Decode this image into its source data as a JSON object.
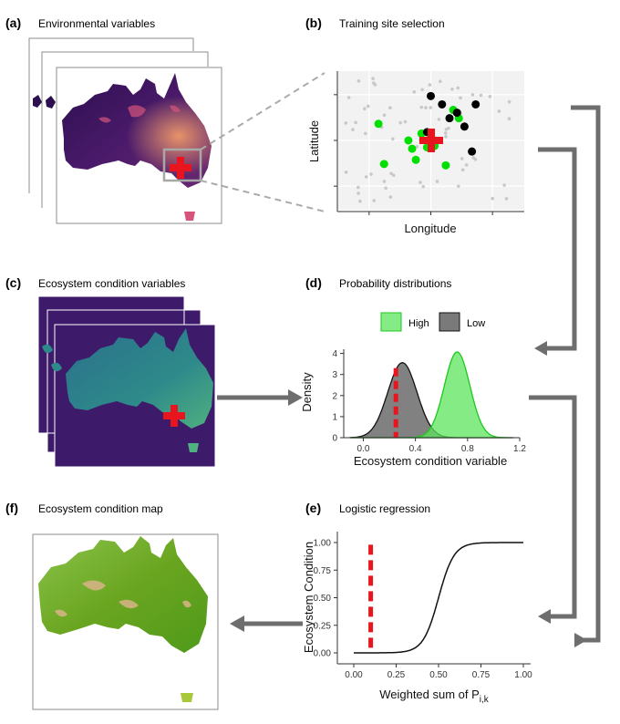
{
  "panels": {
    "a": {
      "letter": "(a)",
      "title": "Environmental variables"
    },
    "b": {
      "letter": "(b)",
      "title": "Training site selection",
      "xlabel": "Longitude",
      "ylabel": "Latitude"
    },
    "c": {
      "letter": "(c)",
      "title": "Ecosystem condition variables"
    },
    "d": {
      "letter": "(d)",
      "title": "Probability distributions",
      "xlabel": "Ecosystem condition variable",
      "ylabel": "Density",
      "legend": [
        {
          "label": "High",
          "color": "#5ce65c"
        },
        {
          "label": "Low",
          "color": "#7a7a7a"
        }
      ]
    },
    "e": {
      "letter": "(e)",
      "title": "Logistic regression",
      "xlabel": "Weighted sum of P",
      "xlabel_sub": "i,k",
      "ylabel": "Ecosystem Condition"
    },
    "f": {
      "letter": "(f)",
      "title": "Ecosystem condition map"
    }
  },
  "colors": {
    "high": "#5ce65c",
    "low": "#7a7a7a",
    "marker": "#e8141e",
    "arrow": "#6e6e6e"
  },
  "chart_data": [
    {
      "type": "scatter",
      "panel": "b",
      "xlabel": "Longitude",
      "ylabel": "Latitude",
      "grid": true,
      "series": [
        {
          "name": "",
          "color": "#00e000",
          "points": [
            [
              0.22,
              0.62
            ],
            [
              0.25,
              0.33
            ],
            [
              0.38,
              0.5
            ],
            [
              0.4,
              0.44
            ],
            [
              0.42,
              0.36
            ],
            [
              0.45,
              0.55
            ],
            [
              0.48,
              0.45
            ],
            [
              0.52,
              0.5
            ],
            [
              0.52,
              0.46
            ],
            [
              0.58,
              0.32
            ],
            [
              0.62,
              0.72
            ],
            [
              0.65,
              0.66
            ]
          ]
        },
        {
          "name": "",
          "color": "#000000",
          "points": [
            [
              0.5,
              0.82
            ],
            [
              0.56,
              0.76
            ],
            [
              0.6,
              0.66
            ],
            [
              0.64,
              0.7
            ],
            [
              0.68,
              0.6
            ],
            [
              0.72,
              0.42
            ],
            [
              0.74,
              0.76
            ],
            [
              0.48,
              0.56
            ]
          ]
        }
      ]
    },
    {
      "type": "area",
      "panel": "d",
      "xlabel": "Ecosystem condition variable",
      "ylabel": "Density",
      "xlim": [
        -0.15,
        1.2
      ],
      "ylim": [
        0,
        4.2
      ],
      "xticks": [
        "0.0",
        "0.4",
        "0.8",
        "1.2"
      ],
      "yticks": [
        "0",
        "1",
        "2",
        "3",
        "4"
      ],
      "legend_position": "top",
      "series": [
        {
          "name": "High",
          "mean": 0.72,
          "sd": 0.098,
          "color": "#5ce65c"
        },
        {
          "name": "Low",
          "mean": 0.3,
          "sd": 0.112,
          "color": "#7a7a7a"
        }
      ],
      "threshold_x": 0.25
    },
    {
      "type": "line",
      "panel": "e",
      "xlabel": "Weighted sum of P i,k",
      "ylabel": "Ecosystem Condition",
      "xlim": [
        0,
        1
      ],
      "ylim": [
        0,
        1
      ],
      "xticks": [
        "0.00",
        "0.25",
        "0.50",
        "0.75",
        "1.00"
      ],
      "yticks": [
        "0.00",
        "0.25",
        "0.50",
        "0.75",
        "1.00"
      ],
      "curve": {
        "midpoint": 0.5,
        "slope": 22
      },
      "threshold_x": 0.1
    }
  ]
}
